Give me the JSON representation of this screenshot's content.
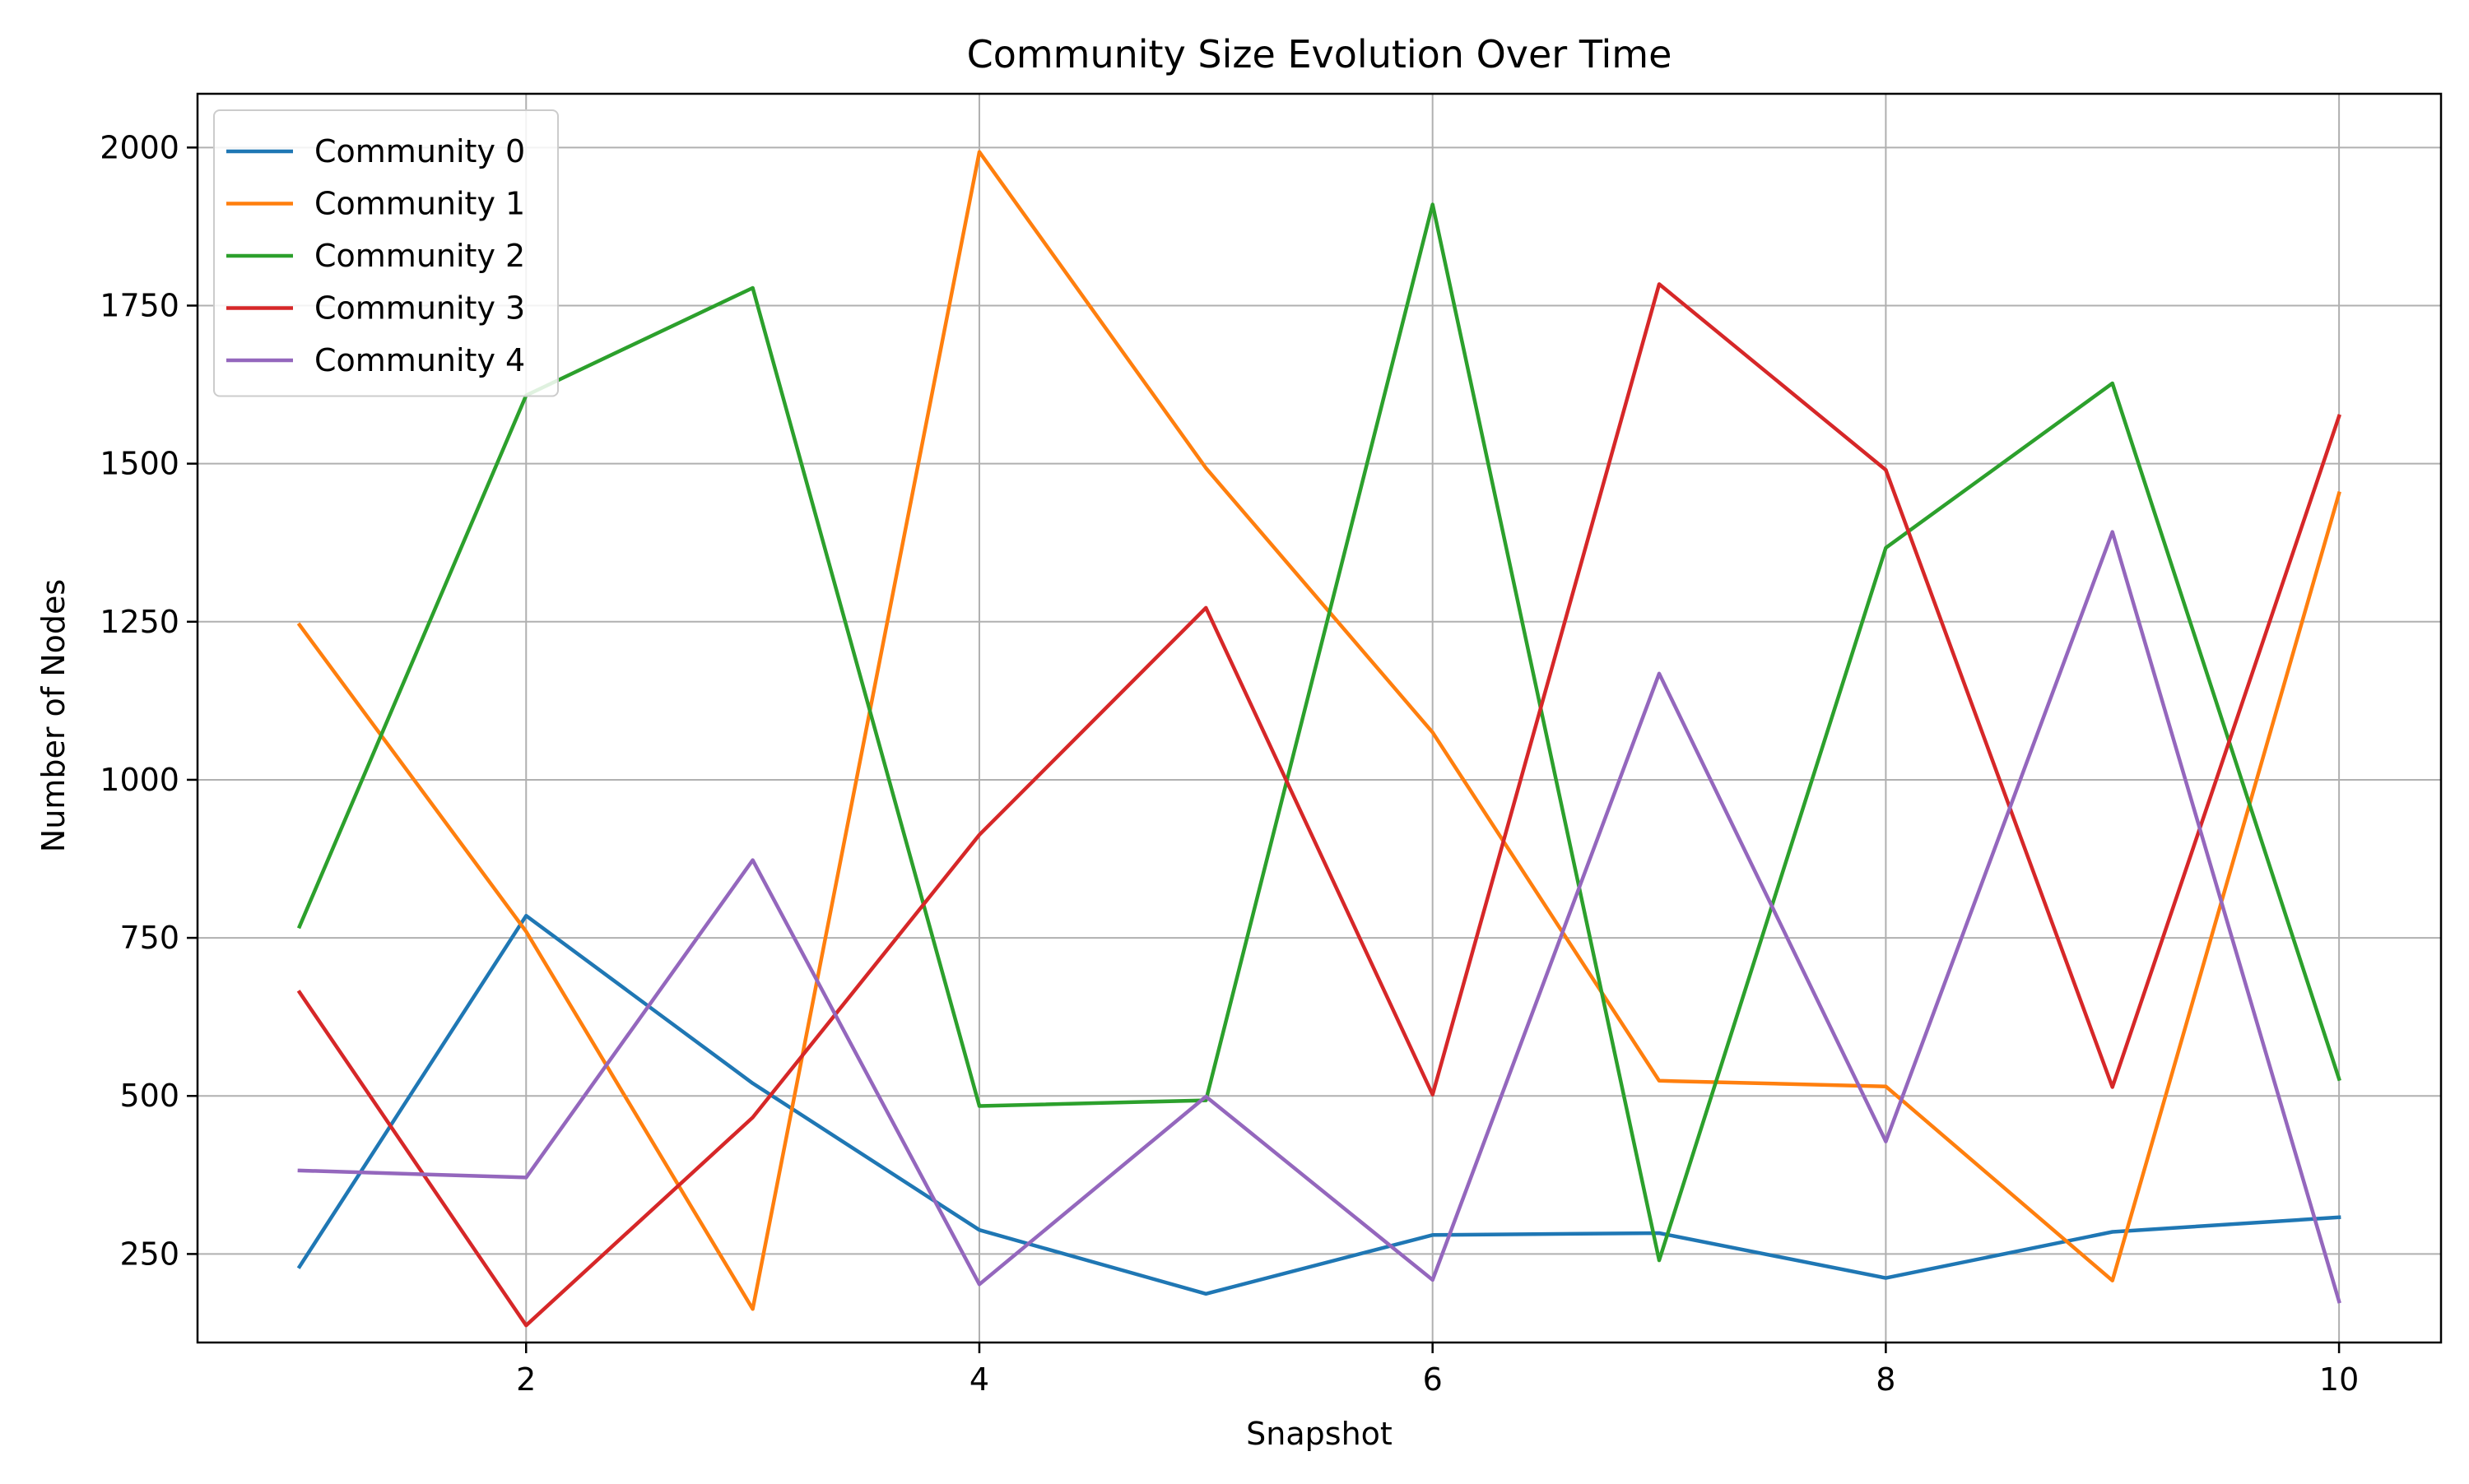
{
  "chart_data": {
    "type": "line",
    "title": "Community Size Evolution Over Time",
    "xlabel": "Snapshot",
    "ylabel": "Number of Nodes",
    "x": [
      1,
      2,
      3,
      4,
      5,
      6,
      7,
      8,
      9,
      10
    ],
    "xlim": [
      0.55,
      10.45
    ],
    "ylim": [
      110,
      2085
    ],
    "xticks": [
      2,
      4,
      6,
      8,
      10
    ],
    "yticks": [
      250,
      500,
      750,
      1000,
      1250,
      1500,
      1750,
      2000
    ],
    "grid": true,
    "legend_position": "top-left",
    "series": [
      {
        "name": "Community 0",
        "color": "#1f77b4",
        "values": [
          230,
          785,
          520,
          288,
          187,
          280,
          283,
          212,
          285,
          308
        ]
      },
      {
        "name": "Community 1",
        "color": "#ff7f0e",
        "values": [
          1245,
          760,
          163,
          1993,
          1493,
          1075,
          524,
          515,
          208,
          1453
        ]
      },
      {
        "name": "Community 2",
        "color": "#2ca02c",
        "values": [
          768,
          1608,
          1778,
          484,
          493,
          1910,
          240,
          1367,
          1627,
          527
        ]
      },
      {
        "name": "Community 3",
        "color": "#d62728",
        "values": [
          664,
          137,
          466,
          913,
          1272,
          502,
          1784,
          1490,
          514,
          1575
        ]
      },
      {
        "name": "Community 4",
        "color": "#9467bd",
        "values": [
          382,
          371,
          873,
          202,
          499,
          209,
          1168,
          428,
          1392,
          175
        ]
      }
    ]
  }
}
